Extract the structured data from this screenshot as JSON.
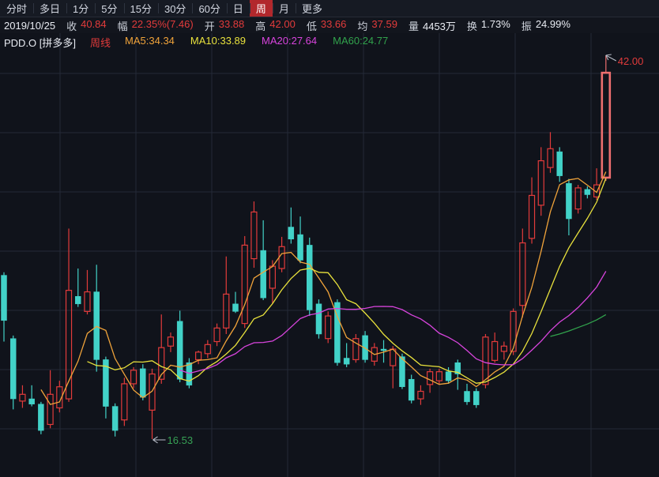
{
  "tabs": {
    "items": [
      {
        "key": "fenshi",
        "label": "分时",
        "active": false
      },
      {
        "key": "duori",
        "label": "多日",
        "active": false
      },
      {
        "key": "1min",
        "label": "1分",
        "active": false
      },
      {
        "key": "5min",
        "label": "5分",
        "active": false
      },
      {
        "key": "15min",
        "label": "15分",
        "active": false
      },
      {
        "key": "30min",
        "label": "30分",
        "active": false
      },
      {
        "key": "60min",
        "label": "60分",
        "active": false
      },
      {
        "key": "day",
        "label": "日",
        "active": false
      },
      {
        "key": "week",
        "label": "周",
        "active": true
      },
      {
        "key": "month",
        "label": "月",
        "active": false
      },
      {
        "key": "more",
        "label": "更多",
        "active": false
      }
    ]
  },
  "quote_bar": {
    "date": "2019/10/25",
    "fields": [
      {
        "key": "close",
        "label": "收",
        "value": "40.84",
        "tone": "up"
      },
      {
        "key": "change",
        "label": "幅",
        "value": "22.35%(7.46)",
        "tone": "up"
      },
      {
        "key": "open",
        "label": "开",
        "value": "33.88",
        "tone": "up"
      },
      {
        "key": "high",
        "label": "高",
        "value": "42.00",
        "tone": "up"
      },
      {
        "key": "low",
        "label": "低",
        "value": "33.66",
        "tone": "up"
      },
      {
        "key": "avg",
        "label": "均",
        "value": "37.59",
        "tone": "up"
      },
      {
        "key": "volume",
        "label": "量",
        "value": "4453万",
        "tone": "flat"
      },
      {
        "key": "turnover",
        "label": "换",
        "value": "1.73%",
        "tone": "flat"
      },
      {
        "key": "amplitude",
        "label": "振",
        "value": "24.99%",
        "tone": "flat"
      }
    ]
  },
  "indicator_bar": {
    "symbol": "PDD.O [拼多多]",
    "period": "周线",
    "mas": [
      {
        "key": "ma5",
        "label": "MA5:34.34"
      },
      {
        "key": "ma10",
        "label": "MA10:33.89"
      },
      {
        "key": "ma20",
        "label": "MA20:27.64"
      },
      {
        "key": "ma60",
        "label": "MA60:24.77"
      }
    ]
  },
  "chart_data": {
    "type": "candlestick",
    "symbol": "PDD.O",
    "period": "weekly",
    "last_date": "2019/10/25",
    "ohlc_note": "candles are [open, high, low, close], weekly bars, price in USD",
    "candles": [
      [
        27.4,
        27.6,
        23.0,
        24.4
      ],
      [
        23.2,
        23.4,
        18.5,
        19.2
      ],
      [
        19.05,
        20.1,
        18.6,
        19.5
      ],
      [
        19.2,
        20.1,
        18.7,
        18.85
      ],
      [
        18.85,
        19.0,
        16.85,
        17.1
      ],
      [
        17.5,
        21.1,
        17.25,
        19.5
      ],
      [
        18.6,
        20.4,
        18.3,
        20.0
      ],
      [
        19.2,
        30.5,
        19.0,
        26.4
      ],
      [
        26.0,
        27.85,
        25.3,
        25.5
      ],
      [
        25.0,
        27.75,
        24.8,
        26.3
      ],
      [
        26.3,
        28.1,
        21.0,
        21.8
      ],
      [
        21.8,
        22.0,
        17.9,
        18.7
      ],
      [
        18.7,
        18.9,
        16.7,
        17.1
      ],
      [
        17.8,
        20.6,
        17.4,
        20.2
      ],
      [
        20.2,
        21.3,
        19.9,
        21.1
      ],
      [
        21.2,
        21.5,
        19.1,
        19.3
      ],
      [
        18.45,
        21.2,
        16.53,
        20.85
      ],
      [
        20.5,
        24.8,
        20.2,
        22.6
      ],
      [
        22.7,
        23.6,
        22.3,
        23.3
      ],
      [
        24.35,
        25.05,
        20.3,
        20.5
      ],
      [
        21.6,
        21.9,
        19.9,
        20.1
      ],
      [
        21.8,
        22.4,
        21.5,
        22.3
      ],
      [
        22.2,
        23.1,
        21.9,
        22.8
      ],
      [
        23.0,
        24.2,
        22.7,
        23.9
      ],
      [
        23.9,
        28.65,
        23.5,
        26.15
      ],
      [
        25.5,
        26.3,
        24.9,
        25.0
      ],
      [
        24.2,
        30.0,
        23.9,
        29.4
      ],
      [
        28.5,
        32.3,
        27.9,
        31.6
      ],
      [
        29.05,
        31.05,
        25.75,
        25.9
      ],
      [
        26.54,
        28.4,
        25.5,
        28.0
      ],
      [
        27.85,
        29.95,
        27.6,
        29.3
      ],
      [
        30.6,
        31.9,
        29.5,
        29.8
      ],
      [
        30.1,
        31.3,
        28.2,
        28.4
      ],
      [
        29.4,
        29.9,
        24.7,
        25.1
      ],
      [
        25.5,
        25.8,
        23.2,
        23.5
      ],
      [
        23.2,
        25.0,
        22.9,
        24.7
      ],
      [
        25.6,
        25.8,
        21.4,
        21.6
      ],
      [
        21.9,
        22.9,
        21.3,
        21.5
      ],
      [
        21.8,
        23.5,
        21.6,
        23.2
      ],
      [
        23.4,
        23.7,
        21.6,
        21.8
      ],
      [
        21.7,
        22.9,
        21.4,
        22.6
      ],
      [
        22.5,
        23.1,
        21.6,
        22.4
      ],
      [
        21.4,
        22.7,
        19.9,
        22.5
      ],
      [
        22.0,
        22.2,
        19.85,
        20.0
      ],
      [
        20.5,
        20.8,
        18.9,
        19.1
      ],
      [
        19.2,
        20.1,
        18.8,
        19.7
      ],
      [
        20.15,
        21.2,
        19.6,
        21.0
      ],
      [
        20.4,
        21.2,
        20.2,
        21.0
      ],
      [
        21.0,
        21.3,
        20.2,
        20.4
      ],
      [
        21.6,
        21.8,
        19.8,
        20.85
      ],
      [
        19.7,
        20.2,
        18.8,
        19.0
      ],
      [
        19.7,
        19.9,
        18.6,
        18.8
      ],
      [
        20.15,
        23.5,
        19.9,
        23.3
      ],
      [
        21.75,
        23.6,
        21.6,
        23.0
      ],
      [
        22.35,
        23.0,
        21.8,
        22.7
      ],
      [
        22.35,
        25.2,
        22.1,
        25.0
      ],
      [
        25.4,
        30.5,
        24.6,
        29.55
      ],
      [
        29.85,
        33.9,
        29.5,
        32.7
      ],
      [
        32.05,
        35.9,
        31.35,
        35.0
      ],
      [
        34.55,
        36.9,
        34.2,
        35.8
      ],
      [
        35.6,
        35.9,
        33.6,
        34.0
      ],
      [
        33.5,
        33.8,
        30.05,
        31.15
      ],
      [
        31.8,
        33.4,
        31.5,
        33.2
      ],
      [
        33.1,
        33.3,
        32.5,
        32.75
      ],
      [
        32.6,
        34.5,
        32.4,
        33.4
      ],
      [
        33.88,
        42.0,
        33.66,
        40.84
      ]
    ],
    "ma_series": [
      {
        "key": "ma5",
        "name": "MA5",
        "window": 5,
        "last_value": 34.34
      },
      {
        "key": "ma10",
        "name": "MA10",
        "window": 10,
        "last_value": 33.89
      },
      {
        "key": "ma20",
        "name": "MA20",
        "window": 20,
        "last_value": 27.64
      },
      {
        "key": "ma60",
        "name": "MA60",
        "window": 60,
        "last_value": 24.77
      }
    ],
    "high_annotation": {
      "text": "42.00",
      "price": 42.0
    },
    "low_annotation": {
      "text": "16.53",
      "price": 16.53
    },
    "grid": true,
    "legend_position": "top-left-overlay"
  },
  "colors": {
    "up": "#e23b3b",
    "down": "#42d2c8",
    "highlight": "#ed6f6f",
    "ma5": "#f0a33a",
    "ma10": "#e8e13c",
    "ma20": "#d844dd",
    "ma60": "#31a24c",
    "grid": "#242937",
    "arrow": "#b9bec9",
    "annotation_low": "#37a155",
    "tab_active_bg": "#b2282c"
  }
}
